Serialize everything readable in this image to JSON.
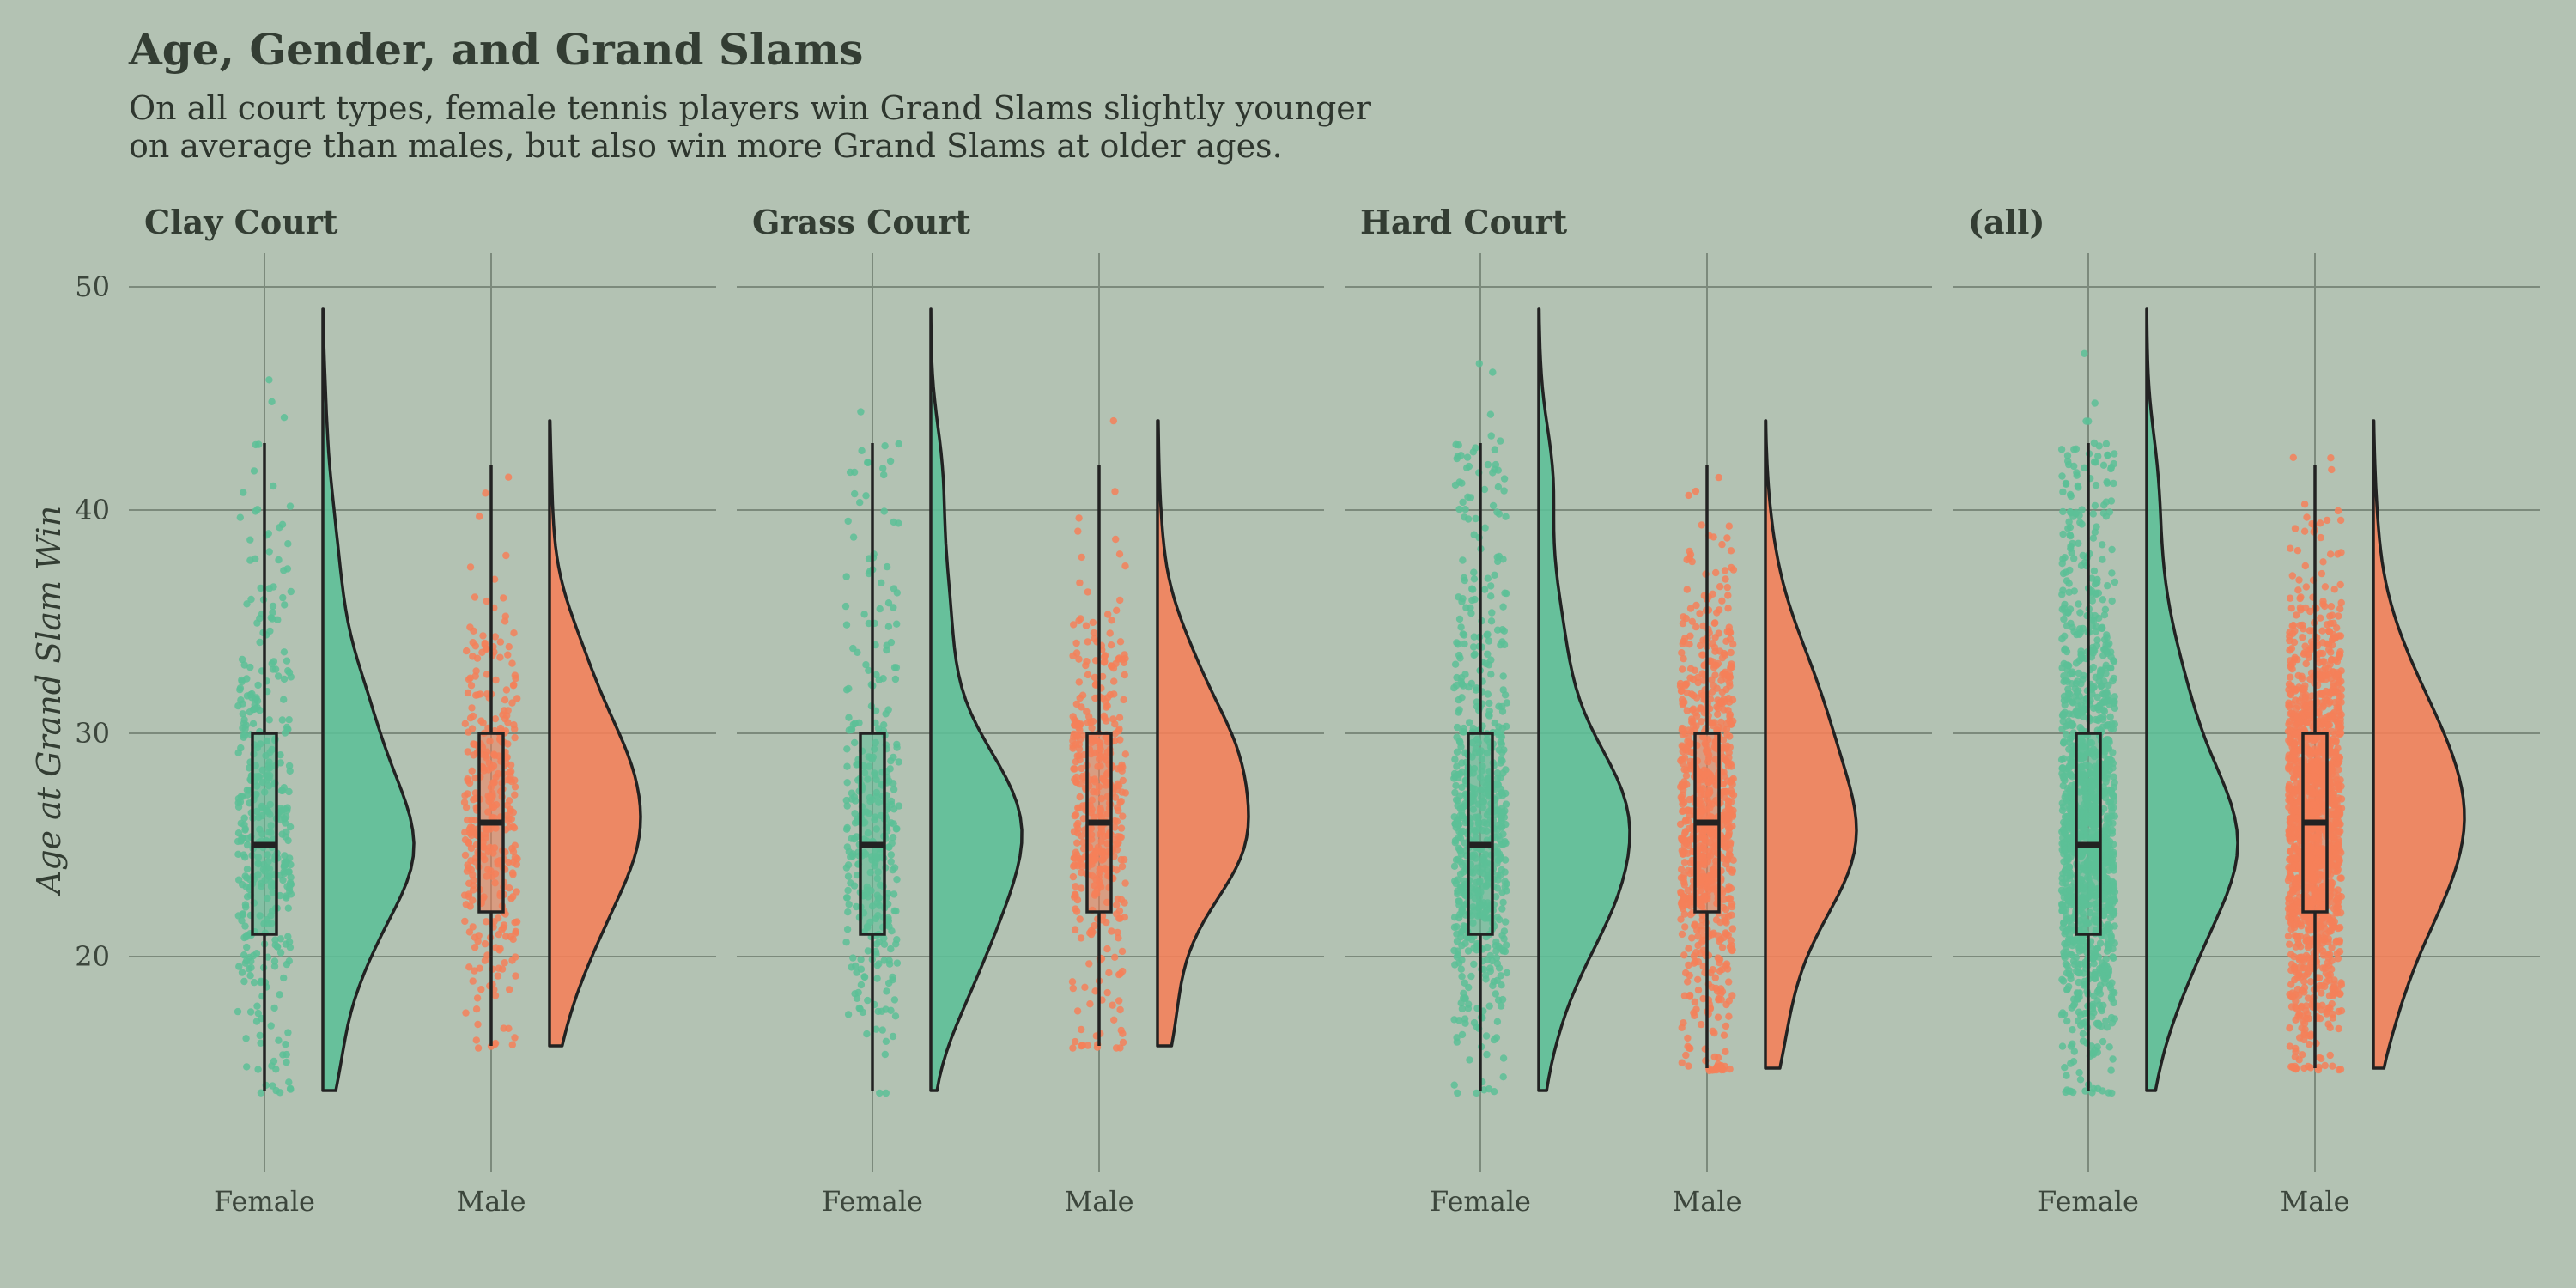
{
  "chart_data": {
    "type": "violin",
    "title": "Age, Gender, and Grand Slams",
    "subtitle": [
      "On all court types, female tennis players win Grand Slams slightly younger",
      "on average than males, but also win more Grand Slams at older ages."
    ],
    "ylabel": "Age at Grand Slam Win",
    "xlabel": "",
    "ylim": [
      11.5,
      51.5
    ],
    "yticks": [
      20,
      30,
      40,
      50
    ],
    "categories": [
      "Female",
      "Male"
    ],
    "colors": {
      "Female": "#5cbf97",
      "Male": "#f58059",
      "background": "#b3c2b3"
    },
    "grid": true,
    "panels": [
      {
        "facet": "Clay Court",
        "groups": [
          {
            "name": "Female",
            "min": 14,
            "q1": 21,
            "median": 25,
            "q3": 30,
            "max": 43,
            "data_max": 49,
            "density_peak_age": 24,
            "n_points": 400
          },
          {
            "name": "Male",
            "min": 16,
            "q1": 22,
            "median": 26,
            "q3": 30,
            "max": 42,
            "data_max": 44,
            "density_peak_age": 29,
            "n_points": 350
          }
        ]
      },
      {
        "facet": "Grass Court",
        "groups": [
          {
            "name": "Female",
            "min": 14,
            "q1": 21,
            "median": 25,
            "q3": 30,
            "max": 43,
            "data_max": 49,
            "density_peak_age": 25,
            "n_points": 330
          },
          {
            "name": "Male",
            "min": 16,
            "q1": 22,
            "median": 26,
            "q3": 30,
            "max": 42,
            "data_max": 44,
            "density_peak_age": 29,
            "n_points": 420
          }
        ]
      },
      {
        "facet": "Hard Court",
        "groups": [
          {
            "name": "Female",
            "min": 14,
            "q1": 21,
            "median": 25,
            "q3": 30,
            "max": 43,
            "data_max": 49,
            "density_peak_age": 24,
            "n_points": 650
          },
          {
            "name": "Male",
            "min": 15,
            "q1": 22,
            "median": 26,
            "q3": 30,
            "max": 42,
            "data_max": 44,
            "density_peak_age": 29,
            "n_points": 800
          }
        ]
      },
      {
        "facet": "(all)",
        "groups": [
          {
            "name": "Female",
            "min": 14,
            "q1": 21,
            "median": 25,
            "q3": 30,
            "max": 43,
            "data_max": 49,
            "density_peak_age": 25,
            "n_points": 1300
          },
          {
            "name": "Male",
            "min": 15,
            "q1": 22,
            "median": 26,
            "q3": 30,
            "max": 42,
            "data_max": 44,
            "density_peak_age": 29,
            "n_points": 1500
          }
        ]
      }
    ]
  }
}
